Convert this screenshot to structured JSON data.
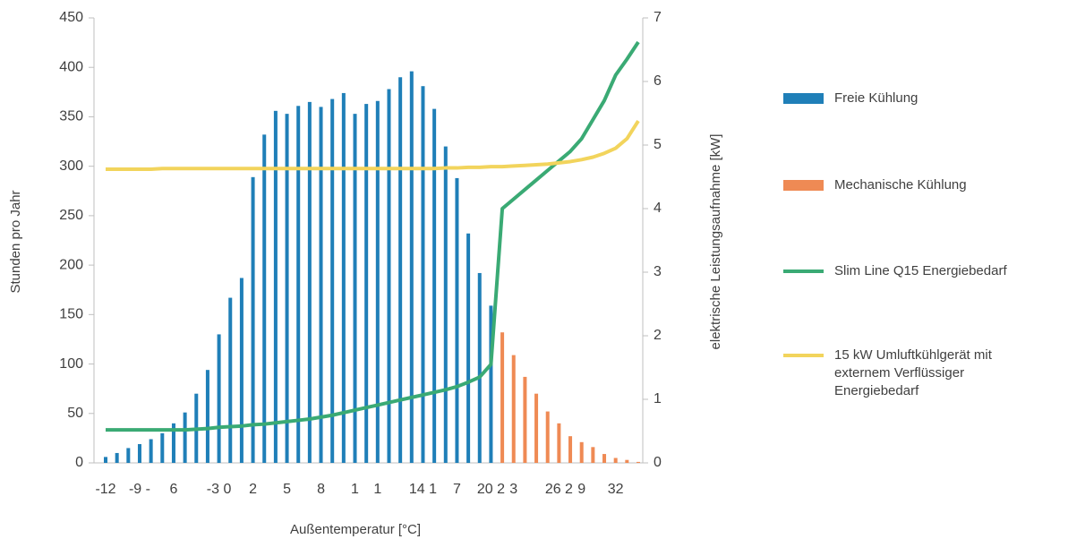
{
  "chart_data": {
    "type": "bar",
    "x_label": "Außentemperatur [°C]",
    "y_label": "Stunden pro Jahr",
    "y2_label": "elektrische Leistungsaufnahme [kW]",
    "categories": [
      "-12",
      null,
      null,
      "-9 -",
      null,
      null,
      "6",
      null,
      null,
      null,
      "-3 0",
      null,
      null,
      "2",
      null,
      null,
      "5",
      null,
      null,
      "8",
      null,
      null,
      "1",
      null,
      "1",
      null,
      null,
      null,
      "14 1",
      null,
      null,
      "7",
      null,
      null,
      "20 2",
      null,
      "3",
      null,
      null,
      null,
      "26 2",
      null,
      "9",
      null,
      null,
      "32",
      null,
      null
    ],
    "ylim": [
      0,
      450
    ],
    "yticks": [
      0,
      50,
      100,
      150,
      200,
      250,
      300,
      350,
      400,
      450
    ],
    "y2lim": [
      0,
      7
    ],
    "y2ticks": [
      0,
      1,
      2,
      3,
      4,
      5,
      6,
      7
    ],
    "series": [
      {
        "name": "Freie Kühlung",
        "type": "bar",
        "color": "#1f7fb8",
        "values": [
          6,
          10,
          15,
          19,
          24,
          30,
          40,
          51,
          70,
          94,
          130,
          167,
          187,
          289,
          332,
          356,
          353,
          361,
          365,
          360,
          368,
          374,
          353,
          363,
          366,
          378,
          390,
          396,
          381,
          358,
          320,
          288,
          232,
          192,
          159,
          null,
          null,
          null,
          null,
          null,
          null,
          null,
          null,
          null,
          null,
          null,
          null,
          null
        ]
      },
      {
        "name": "Mechanische Kühlung",
        "type": "bar",
        "color": "#ef8a54",
        "values": [
          null,
          null,
          null,
          null,
          null,
          null,
          null,
          null,
          null,
          null,
          null,
          null,
          null,
          null,
          null,
          null,
          null,
          null,
          null,
          null,
          null,
          null,
          null,
          null,
          null,
          null,
          null,
          null,
          null,
          null,
          null,
          null,
          null,
          null,
          null,
          132,
          109,
          87,
          70,
          52,
          40,
          27,
          21,
          16,
          9,
          5,
          3,
          1
        ]
      },
      {
        "name": "Slim Line Q15 Energiebedarf",
        "type": "line",
        "axis": "y2",
        "color": "#3aaa74",
        "values": [
          0.52,
          0.52,
          0.52,
          0.52,
          0.52,
          0.52,
          0.52,
          0.52,
          0.53,
          0.54,
          0.56,
          0.57,
          0.58,
          0.6,
          0.61,
          0.63,
          0.65,
          0.67,
          0.69,
          0.72,
          0.75,
          0.79,
          0.83,
          0.87,
          0.91,
          0.95,
          0.99,
          1.03,
          1.07,
          1.11,
          1.15,
          1.2,
          1.27,
          1.35,
          1.55,
          4.0,
          4.15,
          4.3,
          4.45,
          4.6,
          4.75,
          4.9,
          5.1,
          5.4,
          5.7,
          6.1,
          6.35,
          6.62
        ]
      },
      {
        "name": "15 kW Umluftkühlgerät mit externem Verflüssiger Energiebedarf",
        "type": "line",
        "axis": "y2",
        "color": "#f2d45c",
        "values": [
          4.62,
          4.62,
          4.62,
          4.62,
          4.62,
          4.63,
          4.63,
          4.63,
          4.63,
          4.63,
          4.63,
          4.63,
          4.63,
          4.63,
          4.63,
          4.63,
          4.63,
          4.63,
          4.63,
          4.63,
          4.63,
          4.63,
          4.63,
          4.63,
          4.63,
          4.63,
          4.63,
          4.63,
          4.63,
          4.63,
          4.64,
          4.64,
          4.65,
          4.65,
          4.66,
          4.66,
          4.67,
          4.68,
          4.69,
          4.7,
          4.72,
          4.74,
          4.77,
          4.81,
          4.87,
          4.95,
          5.1,
          5.38
        ]
      }
    ]
  }
}
